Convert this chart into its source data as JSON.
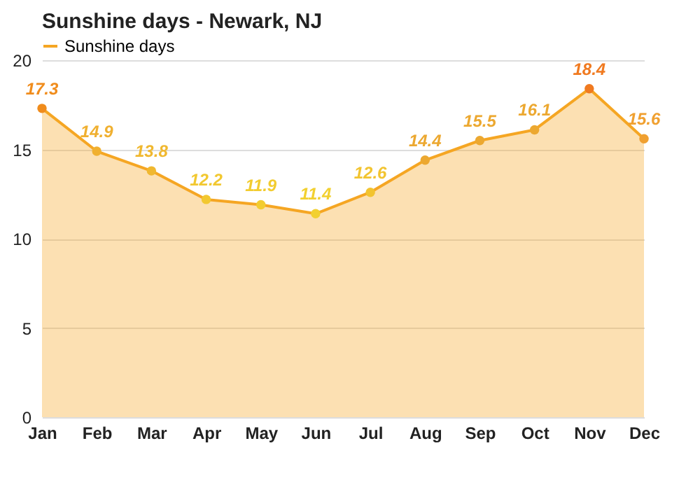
{
  "chart_data": {
    "type": "area",
    "title": "Sunshine days - Newark, NJ",
    "categories": [
      "Jan",
      "Feb",
      "Mar",
      "Apr",
      "May",
      "Jun",
      "Jul",
      "Aug",
      "Sep",
      "Oct",
      "Nov",
      "Dec"
    ],
    "series": [
      {
        "name": "Sunshine days",
        "color": "#f5a623",
        "values": [
          17.3,
          14.9,
          13.8,
          12.2,
          11.9,
          11.4,
          12.6,
          14.4,
          15.5,
          16.1,
          18.4,
          15.6
        ],
        "colors": [
          "#f08c1c",
          "#f0b030",
          "#f0b830",
          "#f2c830",
          "#f2cc30",
          "#f2d030",
          "#f2c430",
          "#eca830",
          "#eca830",
          "#eca830",
          "#f07a20",
          "#f0a030"
        ]
      }
    ],
    "ylim": [
      0,
      20
    ],
    "yticks": [
      0,
      5,
      10,
      15,
      20
    ],
    "grid": "y",
    "legend": "top left",
    "marker": "circle",
    "data_labels": true
  }
}
